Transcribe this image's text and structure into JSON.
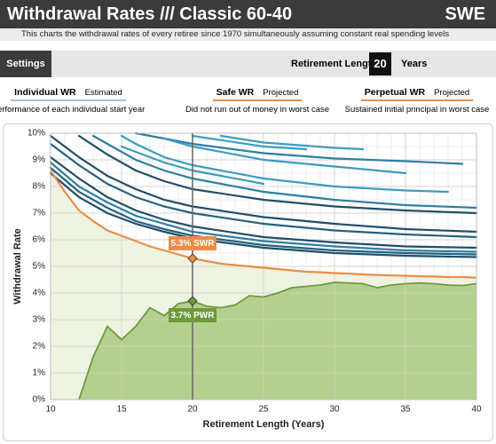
{
  "header": {
    "title": "Withdrawal Rates /// Classic 60-40",
    "ticker": "SWE",
    "subtitle": "This charts the withdrawal rates of every retiree since 1970 simultaneously assuming constant real spending levels"
  },
  "settings": {
    "button": "Settings",
    "label": "Retirement Length",
    "retirement_length": 20,
    "unit": "Years"
  },
  "legend": [
    {
      "title": "Individual WR",
      "tag": "Estimated",
      "desc": "Performance of each individual start year",
      "color": "#9dc3e6"
    },
    {
      "title": "Safe WR",
      "tag": "Projected",
      "desc": "Did not run out of money in worst case",
      "color": "#ed8d45"
    },
    {
      "title": "Perpetual WR",
      "tag": "Projected",
      "desc": "Sustained initial principal in worst case",
      "color": "#ed8d45"
    }
  ],
  "chart_data": {
    "type": "line",
    "xlabel": "Retirement Length (Years)",
    "ylabel": "Withdrawal Rate",
    "xlim": [
      10,
      40
    ],
    "xticks": [
      10,
      15,
      20,
      25,
      30,
      35,
      40
    ],
    "ylim": [
      0,
      10
    ],
    "yticks": [
      {
        "value": 0,
        "label": "0%"
      },
      {
        "value": 1,
        "label": "1%"
      },
      {
        "value": 2,
        "label": "2%"
      },
      {
        "value": 3,
        "label": "3%"
      },
      {
        "value": 4,
        "label": "4%"
      },
      {
        "value": 5,
        "label": "5%"
      },
      {
        "value": 6,
        "label": "6%"
      },
      {
        "value": 7,
        "label": "7%"
      },
      {
        "value": 8,
        "label": "8%"
      },
      {
        "value": 9,
        "label": "9%"
      },
      {
        "value": 10,
        "label": "10%"
      }
    ],
    "grid": true,
    "minor_grid": true,
    "individual": {
      "lines": [
        {
          "color": "#1f4e6b",
          "x": [
            10,
            12,
            14,
            16,
            18,
            20,
            25,
            30,
            35,
            40
          ],
          "values": [
            8.5,
            7.6,
            7.0,
            6.6,
            6.3,
            6.05,
            5.7,
            5.5,
            5.4,
            5.35
          ]
        },
        {
          "color": "#24627f",
          "x": [
            10,
            12,
            14,
            16,
            18,
            20,
            25,
            30,
            35,
            40
          ],
          "values": [
            8.7,
            7.8,
            7.2,
            6.7,
            6.4,
            6.15,
            5.8,
            5.6,
            5.5,
            5.45
          ]
        },
        {
          "color": "#2e7fa0",
          "x": [
            10,
            12,
            14,
            16,
            18,
            20,
            25,
            30,
            35,
            40
          ],
          "values": [
            8.9,
            8.0,
            7.4,
            6.9,
            6.6,
            6.3,
            5.95,
            5.75,
            5.6,
            5.55
          ]
        },
        {
          "color": "#1f4e6b",
          "x": [
            10,
            12,
            14,
            16,
            18,
            20,
            25,
            30,
            35,
            40
          ],
          "values": [
            9.1,
            8.3,
            7.6,
            7.1,
            6.75,
            6.5,
            6.1,
            5.9,
            5.75,
            5.7
          ]
        },
        {
          "color": "#24627f",
          "x": [
            10,
            12,
            14,
            16,
            18,
            20,
            25,
            30,
            35,
            40
          ],
          "values": [
            9.6,
            8.8,
            8.1,
            7.6,
            7.25,
            7.0,
            6.6,
            6.35,
            6.2,
            6.1
          ]
        },
        {
          "color": "#1f4e6b",
          "x": [
            10,
            12,
            14,
            16,
            18,
            20,
            25,
            30,
            35,
            40
          ],
          "values": [
            9.9,
            9.1,
            8.4,
            7.9,
            7.5,
            7.25,
            6.85,
            6.6,
            6.4,
            6.3
          ]
        },
        {
          "color": "#1f4e6b",
          "x": [
            12,
            14,
            16,
            18,
            20,
            25,
            30,
            35,
            40
          ],
          "values": [
            9.9,
            9.2,
            8.6,
            8.2,
            7.9,
            7.5,
            7.25,
            7.1,
            7.0
          ]
        },
        {
          "color": "#2e7fa0",
          "x": [
            13,
            14,
            16,
            18,
            20,
            25,
            30,
            35,
            40
          ],
          "values": [
            9.9,
            9.6,
            9.0,
            8.6,
            8.3,
            7.8,
            7.5,
            7.3,
            7.2
          ]
        },
        {
          "color": "#3d9cc0",
          "x": [
            15,
            16,
            18,
            20,
            25,
            30,
            35,
            38
          ],
          "values": [
            9.9,
            9.6,
            9.1,
            8.8,
            8.3,
            8.0,
            7.85,
            7.8
          ]
        },
        {
          "color": "#2e7fa0",
          "x": [
            16,
            20,
            25,
            30,
            35,
            39
          ],
          "values": [
            10,
            9.6,
            9.25,
            9.05,
            8.95,
            8.85
          ]
        },
        {
          "color": "#3d9cc0",
          "x": [
            18,
            20,
            25,
            30,
            35
          ],
          "values": [
            9.8,
            9.5,
            9.0,
            8.75,
            8.5
          ]
        },
        {
          "color": "#3d9cc0",
          "x": [
            20,
            25,
            28
          ],
          "values": [
            9.9,
            9.5,
            9.4
          ]
        },
        {
          "color": "#3d9cc0",
          "x": [
            15,
            18,
            20,
            22,
            25
          ],
          "values": [
            9.5,
            8.9,
            8.6,
            8.4,
            8.1
          ]
        },
        {
          "color": "#3d9cc0",
          "x": [
            22,
            25,
            30,
            32
          ],
          "values": [
            9.9,
            9.65,
            9.45,
            9.4
          ]
        }
      ]
    },
    "x": [
      10,
      11,
      12,
      13,
      14,
      15,
      16,
      17,
      18,
      19,
      20,
      21,
      22,
      23,
      24,
      25,
      26,
      27,
      28,
      29,
      30,
      31,
      32,
      33,
      34,
      35,
      36,
      37,
      38,
      39,
      40
    ],
    "swr": {
      "color": "#ed8d45",
      "fill": "#eef3e2",
      "values": [
        8.6,
        7.8,
        7.1,
        6.7,
        6.35,
        6.15,
        5.95,
        5.75,
        5.6,
        5.45,
        5.3,
        5.2,
        5.1,
        5.05,
        5.0,
        4.95,
        4.9,
        4.85,
        4.8,
        4.78,
        4.75,
        4.73,
        4.7,
        4.68,
        4.66,
        4.65,
        4.63,
        4.62,
        4.6,
        4.6,
        4.58
      ]
    },
    "pwr": {
      "color": "#6f9a3b",
      "fill": "#b5d08e",
      "values": [
        null,
        null,
        0,
        1.6,
        2.75,
        2.25,
        2.75,
        3.45,
        3.15,
        3.6,
        3.7,
        3.5,
        3.45,
        3.55,
        3.9,
        3.85,
        4.0,
        4.2,
        4.25,
        4.3,
        4.4,
        4.38,
        4.35,
        4.2,
        4.3,
        4.35,
        4.38,
        4.35,
        4.3,
        4.28,
        4.35
      ]
    },
    "annotations": [
      {
        "text": "5.3% SWR",
        "x": 20,
        "y": 5.3,
        "color": "#ed8d45",
        "position": "above"
      },
      {
        "text": "3.7% PWR",
        "x": 20,
        "y": 3.7,
        "color": "#6f9a3b",
        "position": "below"
      }
    ]
  }
}
